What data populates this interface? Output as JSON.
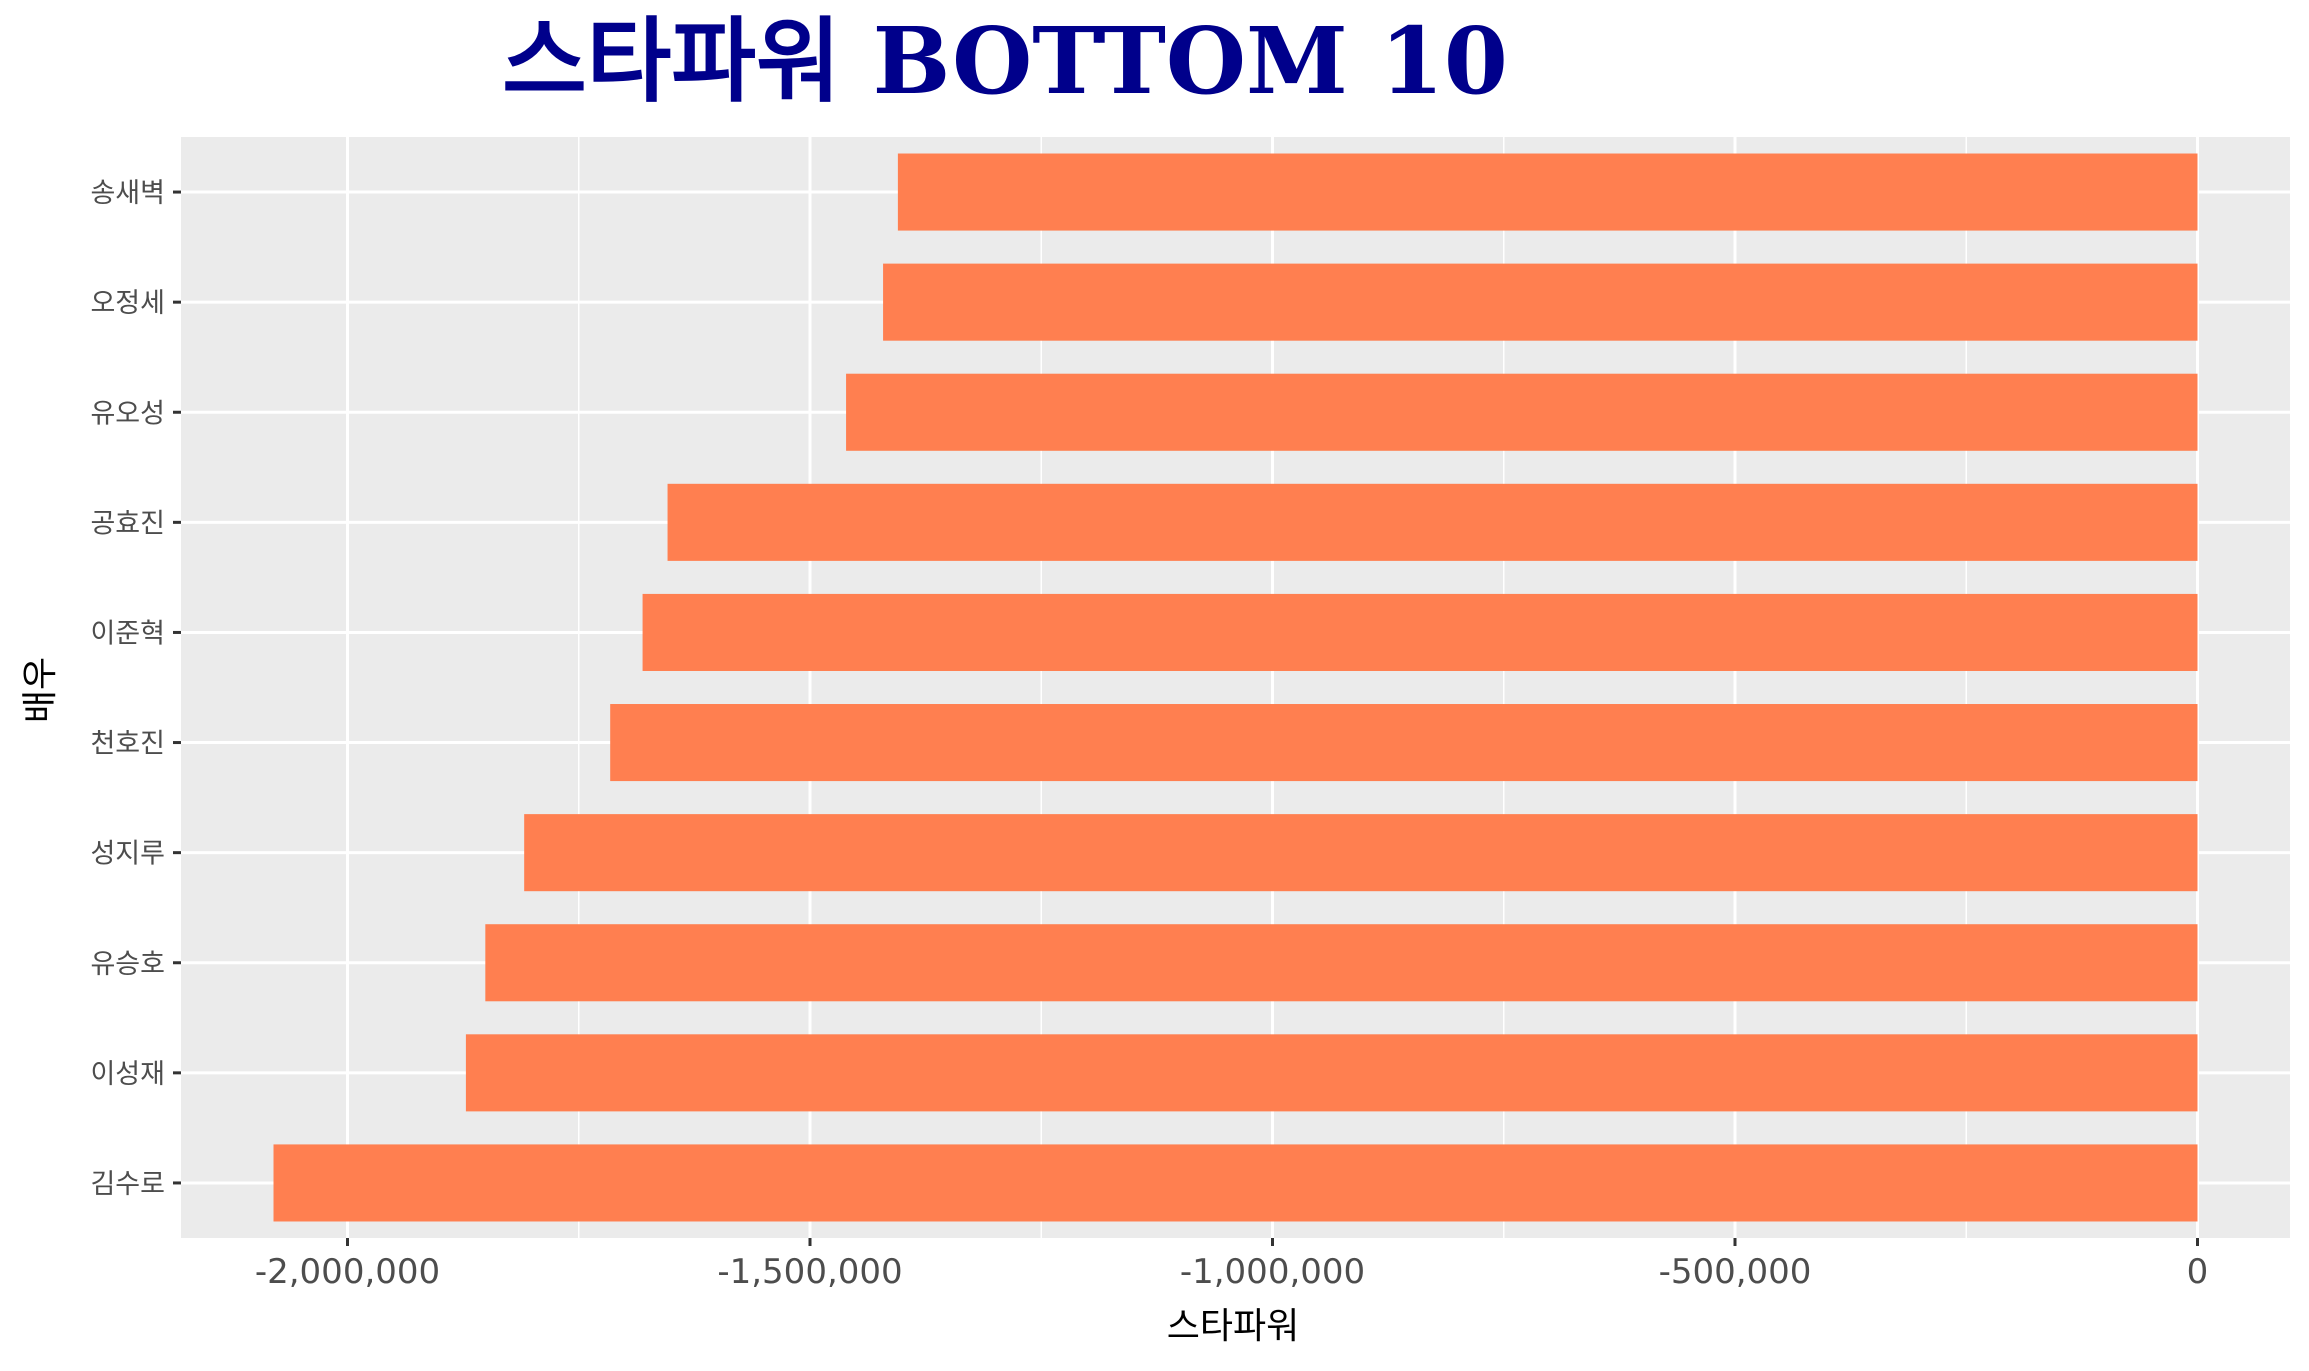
{
  "chart_data": {
    "type": "bar",
    "orientation": "horizontal",
    "title": "스타파워 BOTTOM 10",
    "xlabel": "스타파워",
    "ylabel": "배우",
    "categories": [
      "김수로",
      "이성재",
      "유승호",
      "성지루",
      "천호진",
      "이준혁",
      "공효진",
      "유오성",
      "오정세",
      "송새벽"
    ],
    "values": [
      -2080000,
      -1872000,
      -1851000,
      -1809000,
      -1716000,
      -1681000,
      -1654000,
      -1461000,
      -1421000,
      -1405000
    ],
    "xlim": [
      -2180000,
      100000
    ],
    "x_ticks": [
      -2000000,
      -1500000,
      -1000000,
      -500000,
      0
    ],
    "x_tick_labels": [
      "-2,000,000",
      "-1,500,000",
      "-1,000,000",
      "-500,000",
      "0"
    ],
    "grid": true,
    "legend": "none",
    "bar_color": "#FF7F50",
    "title_color": "#00008B",
    "panel_color": "#EBEBEB",
    "grid_color": "#FFFFFF"
  }
}
